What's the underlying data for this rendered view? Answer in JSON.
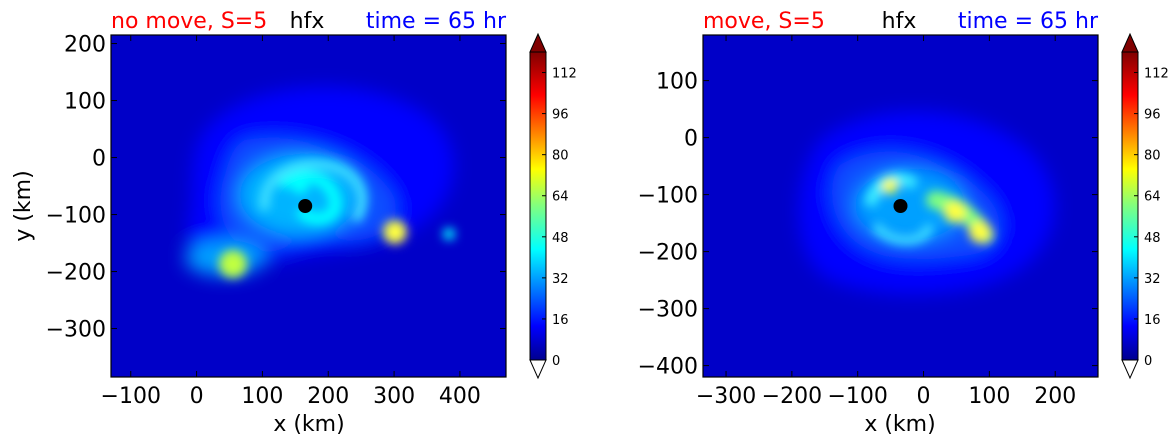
{
  "colors": {
    "title_left": "#ff0000",
    "title_center": "#000000",
    "title_right": "#0000ff",
    "background_field": "#0000d0",
    "center_marker": "#000000"
  },
  "chart_data": [
    {
      "type": "heatmap",
      "title_left": "no move, S=5",
      "title_center": "hfx",
      "title_right": "time = 65 hr",
      "xlabel": "x (km)",
      "ylabel": "y (km)",
      "xlim": [
        -130,
        470
      ],
      "ylim": [
        -385,
        215
      ],
      "xticks": [
        -100,
        0,
        100,
        200,
        300,
        400
      ],
      "yticks": [
        200,
        100,
        0,
        -100,
        -200,
        -300
      ],
      "xtick_labels": [
        "−100",
        "0",
        "100",
        "200",
        "300",
        "400"
      ],
      "ytick_labels": [
        "200",
        "100",
        "0",
        "−100",
        "−200",
        "−300"
      ],
      "center_marker": {
        "x": 165,
        "y": -85
      },
      "features": [
        {
          "x": 200,
          "y": -65,
          "value": 40
        },
        {
          "x": 230,
          "y": -110,
          "value": 34
        },
        {
          "x": 150,
          "y": -60,
          "value": 45
        },
        {
          "x": 300,
          "y": -135,
          "value": 70
        },
        {
          "x": 50,
          "y": -195,
          "value": 62
        },
        {
          "x": 380,
          "y": -135,
          "value": 40
        }
      ],
      "colorbar": {
        "min": 0,
        "max": 120,
        "ticks": [
          0,
          16,
          32,
          48,
          64,
          80,
          96,
          112
        ],
        "tick_labels": [
          "0",
          "16",
          "32",
          "48",
          "64",
          "80",
          "96",
          "112"
        ],
        "extend": "both"
      }
    },
    {
      "type": "heatmap",
      "title_left": "move, S=5",
      "title_center": "hfx",
      "title_right": "time = 65 hr",
      "xlabel": "x (km)",
      "ylabel": "",
      "xlim": [
        -335,
        265
      ],
      "ylim": [
        -420,
        180
      ],
      "xticks": [
        -300,
        -200,
        -100,
        0,
        100,
        200
      ],
      "yticks": [
        100,
        0,
        -100,
        -200,
        -300,
        -400
      ],
      "xtick_labels": [
        "−300",
        "−200",
        "−100",
        "0",
        "100",
        "200"
      ],
      "ytick_labels": [
        "100",
        "0",
        "−100",
        "−200",
        "−300",
        "−400"
      ],
      "center_marker": {
        "x": -35,
        "y": -120
      },
      "features": [
        {
          "x": -50,
          "y": -75,
          "value": 55
        },
        {
          "x": 50,
          "y": -130,
          "value": 62
        },
        {
          "x": 85,
          "y": -170,
          "value": 68
        },
        {
          "x": -15,
          "y": -170,
          "value": 38
        }
      ],
      "colorbar": {
        "min": 0,
        "max": 120,
        "ticks": [
          0,
          16,
          32,
          48,
          64,
          80,
          96,
          112
        ],
        "tick_labels": [
          "0",
          "16",
          "32",
          "48",
          "64",
          "80",
          "96",
          "112"
        ],
        "extend": "both"
      }
    }
  ]
}
